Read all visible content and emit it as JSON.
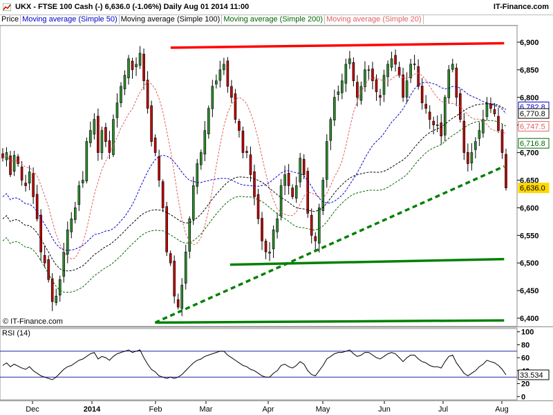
{
  "header": {
    "title": "UKX - FTSE 100 Cash (-)    6,636.0 (-1.06%)    Daily  Aug 01 2014 11:00",
    "brand": "IT-Finance.com"
  },
  "legend": [
    {
      "label": "Price",
      "color": "#000000"
    },
    {
      "label": "Moving average (Simple 50)",
      "color": "#0000cc"
    },
    {
      "label": "Moving average (Simple 100)",
      "color": "#000000"
    },
    {
      "label": "Moving average (Simple 200)",
      "color": "#006600"
    },
    {
      "label": "Moving average (Simple 20)",
      "color": "#e06060"
    }
  ],
  "watermark": "© IT-Finance.com",
  "rsi_label": "RSI (14)",
  "chart_data": [
    {
      "type": "candlestick",
      "title": "UKX - FTSE 100 Cash (-)",
      "y_ticks": [
        6400,
        6450,
        6500,
        6550,
        6600,
        6650,
        6700,
        6750,
        6800,
        6850,
        6900
      ],
      "y_tick_labels": [
        "6,400",
        "6,450",
        "6,500",
        "6,550",
        "6,600",
        "6,650",
        "6,700",
        "6,750",
        "6,800",
        "6,850",
        "6,900"
      ],
      "ylim": [
        6385,
        6930
      ],
      "x_labels": [
        "Dec",
        "2014",
        "Feb",
        "Mar",
        "Apr",
        "May",
        "Jun",
        "Jul",
        "Aug"
      ],
      "close_path": [
        6690,
        6700,
        6660,
        6695,
        6680,
        6650,
        6640,
        6665,
        6620,
        6580,
        6520,
        6500,
        6470,
        6430,
        6440,
        6470,
        6520,
        6560,
        6580,
        6600,
        6640,
        6650,
        6720,
        6740,
        6760,
        6700,
        6740,
        6720,
        6700,
        6760,
        6790,
        6820,
        6840,
        6870,
        6850,
        6860,
        6880,
        6830,
        6780,
        6720,
        6700,
        6650,
        6600,
        6520,
        6500,
        6440,
        6420,
        6460,
        6520,
        6580,
        6640,
        6680,
        6700,
        6740,
        6780,
        6820,
        6830,
        6850,
        6860,
        6820,
        6800,
        6760,
        6740,
        6700,
        6700,
        6660,
        6620,
        6580,
        6540,
        6520,
        6520,
        6560,
        6580,
        6640,
        6660,
        6640,
        6620,
        6640,
        6690,
        6660,
        6590,
        6550,
        6540,
        6600,
        6650,
        6720,
        6760,
        6800,
        6810,
        6830,
        6860,
        6870,
        6830,
        6800,
        6820,
        6850,
        6850,
        6830,
        6810,
        6800,
        6840,
        6860,
        6870,
        6860,
        6840,
        6800,
        6830,
        6860,
        6860,
        6820,
        6790,
        6780,
        6760,
        6750,
        6750,
        6730,
        6800,
        6850,
        6860,
        6800,
        6760,
        6700,
        6680,
        6700,
        6720,
        6740,
        6760,
        6790,
        6780,
        6770,
        6740,
        6700,
        6636
      ],
      "markers": [
        {
          "name": "Price",
          "value": 6636.0,
          "label": "6,636.0",
          "color": "#ffd700"
        },
        {
          "name": "Moving average (Simple 50)",
          "value": 6782.8,
          "label": "6,782.8",
          "color": "#0000cc"
        },
        {
          "name": "Moving average (Simple 100)",
          "value": 6770.8,
          "label": "6,770.8",
          "color": "#000000"
        },
        {
          "name": "Moving average (Simple 20)",
          "value": 6747.5,
          "label": "6,747.5",
          "color": "#e06060"
        },
        {
          "name": "Moving average (Simple 200)",
          "value": 6716.8,
          "label": "6,716.8",
          "color": "#006600"
        }
      ],
      "trend_lines": [
        {
          "color": "#ff0000",
          "style": "solid",
          "from": [
            0.33,
            6890
          ],
          "to": [
            0.975,
            6898
          ]
        },
        {
          "color": "#008000",
          "style": "solid",
          "from": [
            0.445,
            6497
          ],
          "to": [
            0.975,
            6507
          ]
        },
        {
          "color": "#008000",
          "style": "solid",
          "from": [
            0.3,
            6392
          ],
          "to": [
            0.975,
            6396
          ]
        },
        {
          "color": "#008000",
          "style": "dashed",
          "from": [
            0.3,
            6392
          ],
          "to": [
            0.975,
            6675
          ]
        }
      ]
    },
    {
      "type": "line",
      "title": "RSI (14)",
      "y_ticks": [
        0,
        20,
        40,
        60,
        80,
        100
      ],
      "y_tick_labels": [
        "0",
        "20",
        "40",
        "60",
        "80",
        "100"
      ],
      "ylim": [
        -5,
        105
      ],
      "reference_lines": [
        70,
        30
      ],
      "last_value": 33.534,
      "last_label": "33.534",
      "series": [
        48,
        52,
        46,
        50,
        47,
        44,
        42,
        46,
        40,
        36,
        32,
        30,
        28,
        26,
        30,
        36,
        42,
        46,
        48,
        52,
        56,
        58,
        62,
        66,
        68,
        58,
        62,
        60,
        56,
        62,
        66,
        68,
        70,
        72,
        68,
        70,
        72,
        60,
        50,
        42,
        38,
        32,
        30,
        28,
        30,
        28,
        30,
        34,
        40,
        46,
        52,
        56,
        58,
        62,
        64,
        66,
        68,
        70,
        70,
        64,
        60,
        56,
        52,
        48,
        46,
        42,
        40,
        36,
        32,
        30,
        30,
        36,
        40,
        48,
        50,
        46,
        44,
        48,
        54,
        50,
        40,
        34,
        32,
        40,
        48,
        58,
        62,
        66,
        68,
        68,
        70,
        72,
        66,
        62,
        64,
        68,
        68,
        64,
        60,
        58,
        62,
        66,
        68,
        66,
        60,
        54,
        60,
        64,
        64,
        58,
        54,
        52,
        48,
        46,
        46,
        44,
        54,
        62,
        64,
        52,
        44,
        36,
        32,
        36,
        40,
        46,
        50,
        56,
        54,
        52,
        48,
        42,
        33.5
      ]
    }
  ]
}
